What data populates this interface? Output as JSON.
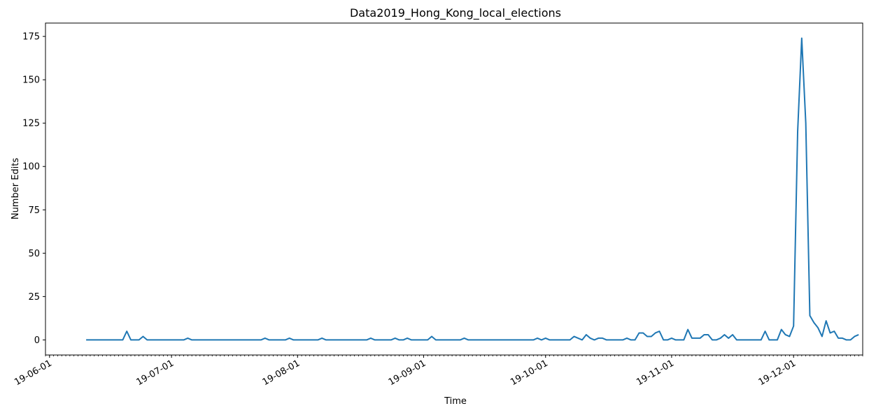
{
  "chart_data": {
    "type": "line",
    "title": "Data2019_Hong_Kong_local_elections",
    "xlabel": "Time",
    "ylabel": "Number Edits",
    "xlim": [
      "2019-05-31",
      "2019-12-18"
    ],
    "ylim": [
      -8.7,
      182.7
    ],
    "y_ticks": [
      0,
      25,
      50,
      75,
      100,
      125,
      150,
      175
    ],
    "x_ticks": [
      {
        "date": "2019-06-01",
        "label": "19-06-01"
      },
      {
        "date": "2019-07-01",
        "label": "19-07-01"
      },
      {
        "date": "2019-08-01",
        "label": "19-08-01"
      },
      {
        "date": "2019-09-01",
        "label": "19-09-01"
      },
      {
        "date": "2019-10-01",
        "label": "19-10-01"
      },
      {
        "date": "2019-11-01",
        "label": "19-11-01"
      },
      {
        "date": "2019-12-01",
        "label": "19-12-01"
      }
    ],
    "grid": false,
    "series": [
      {
        "color": "#1f77b4",
        "start_date": "2019-06-10",
        "values": [
          0,
          0,
          0,
          0,
          0,
          0,
          0,
          0,
          0,
          0,
          5,
          0,
          0,
          0,
          2,
          0,
          0,
          0,
          0,
          0,
          0,
          0,
          0,
          0,
          0,
          1,
          0,
          0,
          0,
          0,
          0,
          0,
          0,
          0,
          0,
          0,
          0,
          0,
          0,
          0,
          0,
          0,
          0,
          0,
          1,
          0,
          0,
          0,
          0,
          0,
          1,
          0,
          0,
          0,
          0,
          0,
          0,
          0,
          1,
          0,
          0,
          0,
          0,
          0,
          0,
          0,
          0,
          0,
          0,
          0,
          1,
          0,
          0,
          0,
          0,
          0,
          1,
          0,
          0,
          1,
          0,
          0,
          0,
          0,
          0,
          2,
          0,
          0,
          0,
          0,
          0,
          0,
          0,
          1,
          0,
          0,
          0,
          0,
          0,
          0,
          0,
          0,
          0,
          0,
          0,
          0,
          0,
          0,
          0,
          0,
          0,
          1,
          0,
          1,
          0,
          0,
          0,
          0,
          0,
          0,
          2,
          1,
          0,
          3,
          1,
          0,
          1,
          1,
          0,
          0,
          0,
          0,
          0,
          1,
          0,
          0,
          4,
          4,
          2,
          2,
          4,
          5,
          0,
          0,
          1,
          0,
          0,
          0,
          6,
          1,
          1,
          1,
          3,
          3,
          0,
          0,
          1,
          3,
          1,
          3,
          0,
          0,
          0,
          0,
          0,
          0,
          0,
          5,
          0,
          0,
          0,
          6,
          3,
          2,
          8,
          120,
          174,
          125,
          14,
          10,
          7,
          2,
          11,
          4,
          5,
          1,
          1,
          0,
          0,
          2,
          3
        ]
      }
    ]
  }
}
